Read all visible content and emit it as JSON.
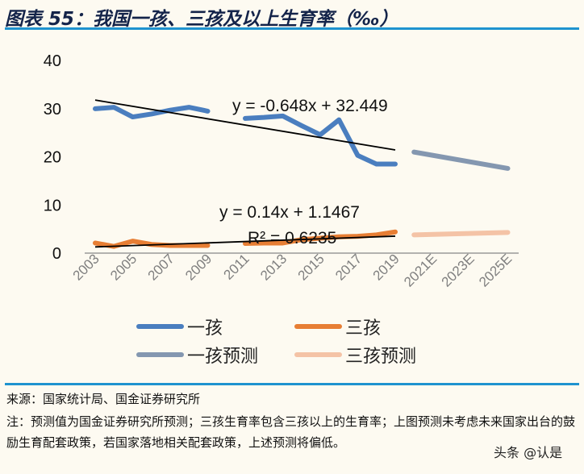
{
  "title": "图表 55：我国一孩、三孩及以上生育率（‰）",
  "source": "来源：国家统计局、国金证券研究所",
  "note": "注：预测值为国金证券研究所预测；三孩生育率包含三孩以上的生育率；上图预测未考虑未来国家出台的鼓励生育配套政策，若国家落地相关配套政策，上述预测将偏低。",
  "watermark": "头条 @认是",
  "chart_data": {
    "type": "line",
    "title": "",
    "xlabel": "",
    "ylabel": "",
    "ylim": [
      0,
      40
    ],
    "yticks": [
      0,
      10,
      20,
      30,
      40
    ],
    "xtick_labels": [
      "2003",
      "2005",
      "2007",
      "2009",
      "2011",
      "2013",
      "2015",
      "2017",
      "2019",
      "2021E",
      "2023E",
      "2025E"
    ],
    "grid": false,
    "legend_position": "bottom",
    "series": [
      {
        "name": "一孩",
        "color": "#4a7ebf",
        "x": [
          2003,
          2004,
          2005,
          2006,
          2007,
          2008,
          2009,
          null,
          2011,
          2012,
          2013,
          2014,
          2015,
          2016,
          2017,
          2018,
          2019
        ],
        "values": [
          30.0,
          30.3,
          28.3,
          28.9,
          29.7,
          30.3,
          29.5,
          null,
          28.0,
          28.2,
          28.5,
          26.5,
          24.6,
          27.7,
          20.3,
          18.5,
          18.5
        ]
      },
      {
        "name": "三孩",
        "color": "#e77e34",
        "x": [
          2003,
          2004,
          2005,
          2006,
          2007,
          2008,
          2009,
          null,
          2011,
          2012,
          2013,
          2014,
          2015,
          2016,
          2017,
          2018,
          2019
        ],
        "values": [
          2.1,
          1.4,
          2.5,
          1.8,
          1.6,
          1.6,
          1.6,
          null,
          2.0,
          2.1,
          2.1,
          2.8,
          3.1,
          3.4,
          3.5,
          3.8,
          4.4
        ]
      },
      {
        "name": "一孩预测",
        "color": "#8497b0",
        "x": [
          2020,
          2025
        ],
        "values": [
          21.0,
          17.6
        ]
      },
      {
        "name": "三孩预测",
        "color": "#f4c3a6",
        "x": [
          2020,
          2025
        ],
        "values": [
          3.8,
          4.3
        ]
      }
    ],
    "trendlines": [
      {
        "label": "y = -0.648x + 32.449",
        "slope": -0.648,
        "intercept": 32.449,
        "x_from": 2003,
        "x_to": 2019
      },
      {
        "label": "y = 0.14x + 1.1467",
        "r2_label": "R² = 0.6235",
        "slope": 0.14,
        "intercept": 1.1467,
        "x_from": 2003,
        "x_to": 2019
      }
    ]
  }
}
